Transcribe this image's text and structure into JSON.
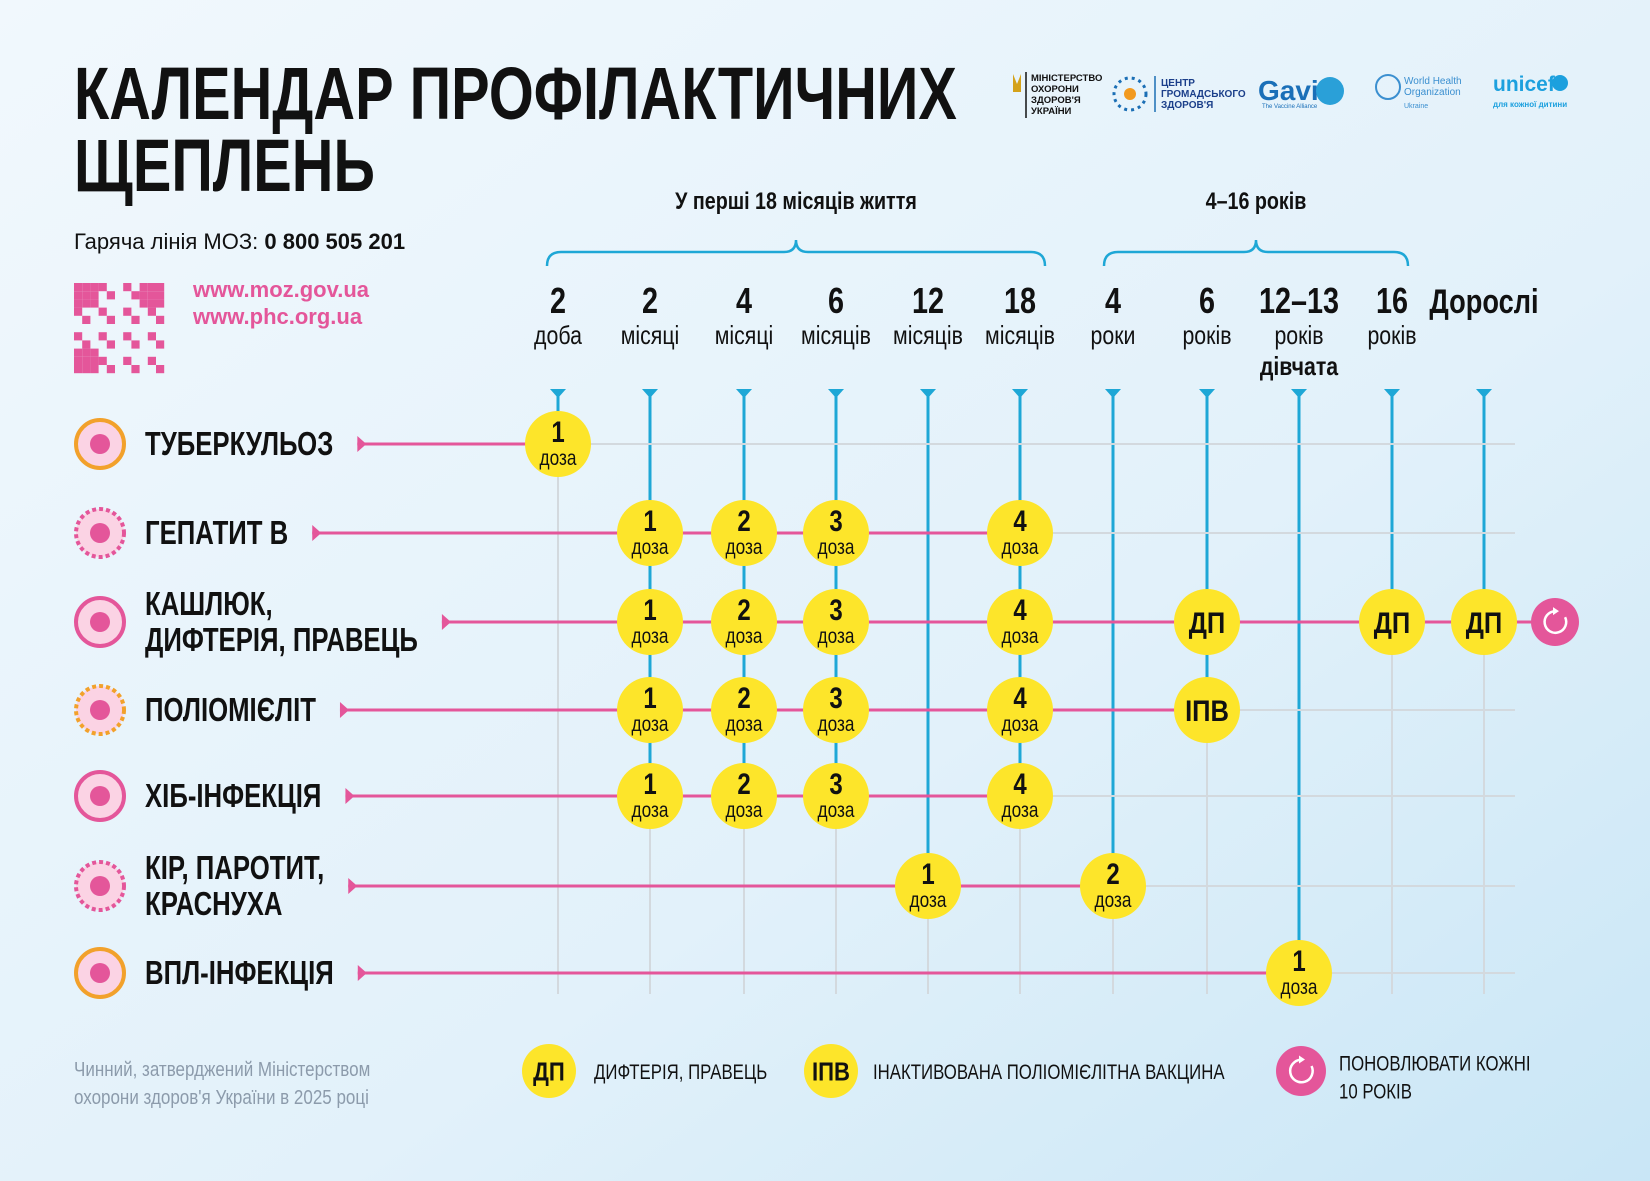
{
  "header": {
    "title": [
      "КАЛЕНДАР ПРОФІЛАКТИЧНИХ",
      "ЩЕПЛЕНЬ"
    ],
    "hotline_label": "Гаряча лінія МОЗ:",
    "hotline_number": "0 800 505 201",
    "urls": [
      "www.moz.gov.ua",
      "www.phc.org.ua"
    ]
  },
  "logos": {
    "moz": [
      "МІНІСТЕРСТВО",
      "ОХОРОНИ",
      "ЗДОРОВ'Я",
      "УКРАЇНИ"
    ],
    "phc": [
      "ЦЕНТР",
      "ГРОМАДСЬКОГО",
      "ЗДОРОВ'Я"
    ],
    "gavi": [
      "Gavi",
      "The Vaccine Alliance"
    ],
    "who": [
      "World Health",
      "Organization",
      "Ukraine"
    ],
    "unicef": [
      "unicef",
      "для кожної дитини"
    ]
  },
  "groups": [
    "У перші 18 місяців життя",
    "4–16 років"
  ],
  "columns": [
    {
      "number": 2,
      "unit": "доба"
    },
    {
      "number": 2,
      "unit": "місяці"
    },
    {
      "number": 4,
      "unit": "місяці"
    },
    {
      "number": 6,
      "unit": "місяців"
    },
    {
      "number": 12,
      "unit": "місяців"
    },
    {
      "number": 18,
      "unit": "місяців"
    },
    {
      "number": 4,
      "unit": "роки"
    },
    {
      "number": 6,
      "unit": "років"
    },
    {
      "number": "12–13",
      "unit": "років",
      "note": "дівчата"
    },
    {
      "number": 16,
      "unit": "років"
    },
    {
      "label": "Дорослі"
    }
  ],
  "rows": [
    {
      "name": [
        "ТУБЕРКУЛЬОЗ"
      ],
      "cells": [
        {
          "number": 1,
          "unit": "доза"
        },
        null,
        null,
        null,
        null,
        null,
        null,
        null,
        null,
        null,
        null
      ]
    },
    {
      "name": [
        "ГЕПАТИТ В"
      ],
      "cells": [
        null,
        {
          "number": 1,
          "unit": "доза"
        },
        {
          "number": 2,
          "unit": "доза"
        },
        {
          "number": 3,
          "unit": "доза"
        },
        null,
        {
          "number": 4,
          "unit": "доза"
        },
        null,
        null,
        null,
        null,
        null
      ]
    },
    {
      "name": [
        "КАШЛЮК,",
        "ДИФТЕРІЯ, ПРАВЕЦЬ"
      ],
      "renew": true,
      "cells": [
        null,
        {
          "number": 1,
          "unit": "доза"
        },
        {
          "number": 2,
          "unit": "доза"
        },
        {
          "number": 3,
          "unit": "доза"
        },
        null,
        {
          "number": 4,
          "unit": "доза"
        },
        null,
        {
          "label": "ДП"
        },
        null,
        {
          "label": "ДП"
        },
        {
          "label": "ДП"
        }
      ]
    },
    {
      "name": [
        "ПОЛІОМІЄЛІТ"
      ],
      "cells": [
        null,
        {
          "number": 1,
          "unit": "доза"
        },
        {
          "number": 2,
          "unit": "доза"
        },
        {
          "number": 3,
          "unit": "доза"
        },
        null,
        {
          "number": 4,
          "unit": "доза"
        },
        null,
        {
          "label": "ІПВ"
        },
        null,
        null,
        null
      ]
    },
    {
      "name": [
        "ХІБ-ІНФЕКЦІЯ"
      ],
      "cells": [
        null,
        {
          "number": 1,
          "unit": "доза"
        },
        {
          "number": 2,
          "unit": "доза"
        },
        {
          "number": 3,
          "unit": "доза"
        },
        null,
        {
          "number": 4,
          "unit": "доза"
        },
        null,
        null,
        null,
        null,
        null
      ]
    },
    {
      "name": [
        "КІР, ПАРОТИТ,",
        "КРАСНУХА"
      ],
      "cells": [
        null,
        null,
        null,
        null,
        {
          "number": 1,
          "unit": "доза"
        },
        null,
        {
          "number": 2,
          "unit": "доза"
        },
        null,
        null,
        null,
        null
      ]
    },
    {
      "name": [
        "ВПЛ-ІНФЕКЦІЯ"
      ],
      "cells": [
        null,
        null,
        null,
        null,
        null,
        null,
        null,
        null,
        {
          "number": 1,
          "unit": "доза"
        },
        null,
        null
      ]
    }
  ],
  "legend": [
    {
      "badge": "ДП",
      "text": [
        "ДИФТЕРІЯ, ПРАВЕЦЬ"
      ]
    },
    {
      "badge": "ІПВ",
      "text": [
        "ІНАКТИВОВАНА ПОЛІОМІЄЛІТНА ВАКЦИНА"
      ]
    },
    {
      "text": [
        "ПОНОВЛЮВАТИ КОЖНІ",
        "10 РОКІВ"
      ]
    }
  ],
  "footer": [
    "Чинний, затверджений Міністерством",
    "охорони здоров'я України в 2025 році"
  ]
}
